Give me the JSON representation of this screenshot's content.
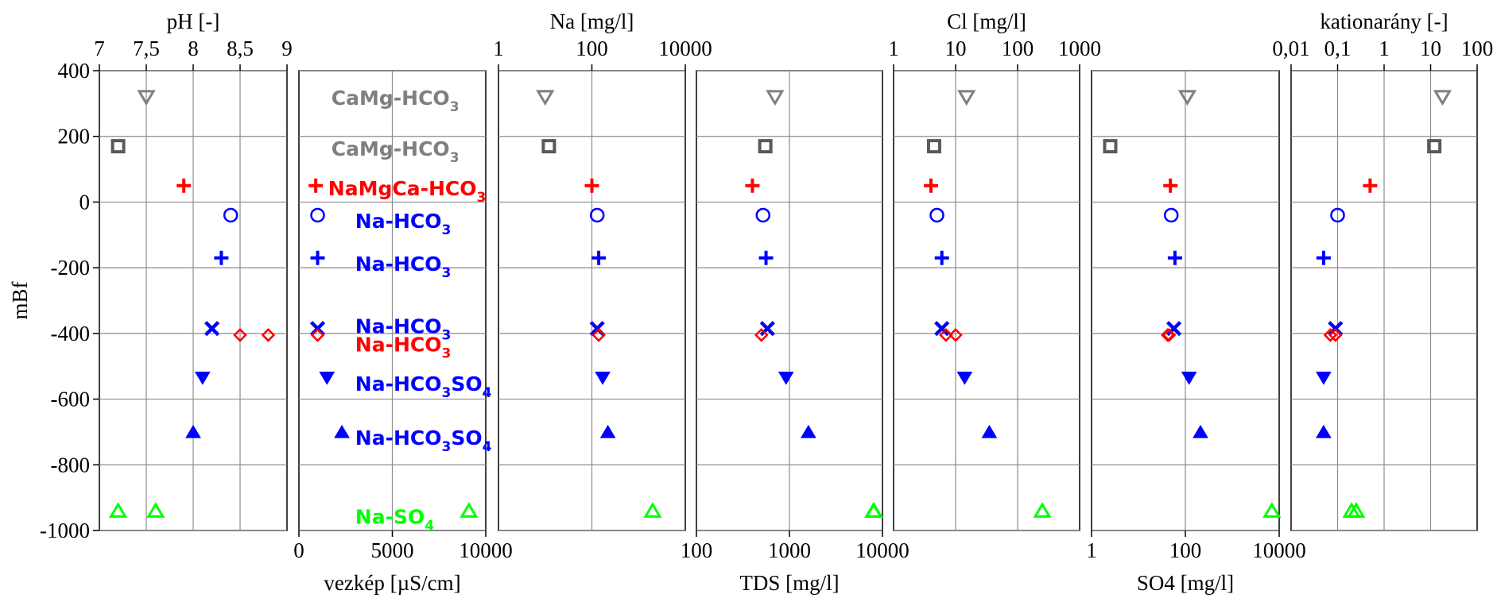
{
  "chart_data": {
    "type": "scatter",
    "y_axis": {
      "label": "mBf",
      "ylim": [
        -1000,
        400
      ],
      "ticks": [
        400,
        200,
        0,
        -200,
        -400,
        -600,
        -800,
        -1000
      ],
      "tick_labels": [
        "400",
        "200",
        "0",
        "-200",
        "-400",
        "-600",
        "-800",
        "-1000"
      ]
    },
    "panels": [
      {
        "id": "ph_ec",
        "top_axis": {
          "label": "pH [-]",
          "scale": "linear",
          "range": [
            7,
            9
          ],
          "ticks": [
            7,
            7.5,
            8,
            8.5,
            9
          ],
          "tick_labels": [
            "7",
            "7,5",
            "8",
            "8,5",
            "9"
          ]
        },
        "bottom_axis": {
          "label": "vezkép [µS/cm]",
          "scale": "linear",
          "range": [
            0,
            10000
          ],
          "ticks": [
            0,
            5000,
            10000
          ],
          "tick_labels": [
            "0",
            "5000",
            "10000"
          ]
        },
        "grid": true
      },
      {
        "id": "na_tds",
        "top_axis": {
          "label": "Na [mg/l]",
          "scale": "log",
          "range": [
            1,
            10000
          ],
          "ticks": [
            1,
            100,
            10000
          ],
          "tick_labels": [
            "1",
            "100",
            "10000"
          ]
        },
        "bottom_axis": {
          "label": "TDS [mg/l]",
          "scale": "log",
          "range": [
            100,
            10000
          ],
          "ticks": [
            100,
            1000,
            10000
          ],
          "tick_labels": [
            "100",
            "1000",
            "10000"
          ]
        },
        "grid": true
      },
      {
        "id": "cl_so4",
        "top_axis": {
          "label": "Cl [mg/l]",
          "scale": "log",
          "range": [
            1,
            1000
          ],
          "ticks": [
            1,
            10,
            100,
            1000
          ],
          "tick_labels": [
            "1",
            "10",
            "100",
            "1000"
          ]
        },
        "bottom_axis": {
          "label": "SO4 [mg/l]",
          "scale": "log",
          "range": [
            1,
            10000
          ],
          "ticks": [
            1,
            100,
            10000
          ],
          "tick_labels": [
            "1",
            "100",
            "10000"
          ]
        },
        "grid": true
      },
      {
        "id": "kation",
        "top_axis": {
          "label": "kationarány [-]",
          "scale": "log",
          "range": [
            0.01,
            100
          ],
          "ticks": [
            0.01,
            0.1,
            1,
            10,
            100
          ],
          "tick_labels": [
            "0,01",
            "0,1",
            "1",
            "10",
            "100"
          ]
        },
        "grid": true
      }
    ],
    "samples": [
      {
        "type": "CaMg-HCO3",
        "marker": "triangle-down-open",
        "color": "#7f7f7f",
        "depth": 320,
        "pH": 7.5,
        "ec": null,
        "Na": 10,
        "TDS": 700,
        "Cl": 15,
        "SO4": 110,
        "kation": 18
      },
      {
        "type": "CaMg-HCO3",
        "marker": "square-open",
        "color": "#5a5a5a",
        "depth": 170,
        "pH": 7.2,
        "ec": null,
        "Na": 12,
        "TDS": 550,
        "Cl": 4.5,
        "SO4": 2.5,
        "kation": 12
      },
      {
        "type": "NaMgCa-HCO3",
        "marker": "plus",
        "color": "#ff0000",
        "depth": 50,
        "pH": 7.9,
        "ec": null,
        "Na": 100,
        "TDS": 400,
        "Cl": 4,
        "SO4": 48,
        "kation": 0.5
      },
      {
        "type": "Na-HCO3",
        "marker": "circle-open",
        "color": "#0000ff",
        "depth": -40,
        "pH": 8.4,
        "ec": null,
        "Na": 130,
        "TDS": 520,
        "Cl": 5,
        "SO4": 50,
        "kation": 0.1
      },
      {
        "type": "Na-HCO3",
        "marker": "plus",
        "color": "#0000ff",
        "depth": -170,
        "pH": 8.3,
        "ec": null,
        "Na": 140,
        "TDS": 560,
        "Cl": 6,
        "SO4": 60,
        "kation": 0.05
      },
      {
        "type": "Na-HCO3",
        "marker": "x",
        "color": "#0000ff",
        "depth": -385,
        "pH": 8.2,
        "ec": null,
        "Na": 130,
        "TDS": 580,
        "Cl": 6,
        "SO4": 57,
        "kation": 0.09
      },
      {
        "type": "Na-HCO3",
        "marker": "diamond-open",
        "color": "#ff0000",
        "depth": -405,
        "pH": 8.5,
        "ec": null,
        "Na": 140,
        "TDS": 500,
        "Cl": 7,
        "SO4": 42,
        "kation": 0.07
      },
      {
        "type": "Na-HCO3",
        "marker": "diamond-open",
        "color": "#ff0000",
        "depth": -405,
        "pH": 8.8,
        "ec": null,
        "Na": null,
        "TDS": null,
        "Cl": 10,
        "SO4": 45,
        "kation": 0.09
      },
      {
        "type": "Na-HCO3SO4",
        "marker": "triangle-down-filled",
        "color": "#0000ff",
        "depth": -535,
        "pH": 8.1,
        "ec": null,
        "Na": 170,
        "TDS": 920,
        "Cl": 14,
        "SO4": 120,
        "kation": 0.05
      },
      {
        "type": "Na-HCO3SO4",
        "marker": "triangle-up-filled",
        "color": "#0000ff",
        "depth": -700,
        "pH": 8.0,
        "ec": null,
        "Na": 220,
        "TDS": 1600,
        "Cl": 35,
        "SO4": 210,
        "kation": 0.05
      },
      {
        "type": "Na-SO4",
        "marker": "triangle-up-open",
        "color": "#00ff00",
        "depth": -940,
        "pH": 7.2,
        "ec": null,
        "Na": 2000,
        "TDS": 8000,
        "Cl": 250,
        "SO4": 7000,
        "kation": 0.2
      },
      {
        "type": "Na-SO4",
        "marker": "triangle-up-open",
        "color": "#00ff00",
        "depth": -940,
        "pH": 7.6,
        "ec": null,
        "Na": null,
        "TDS": 8100,
        "Cl": null,
        "SO4": null,
        "kation": 0.25
      }
    ],
    "ec_markers": [
      {
        "ec": null,
        "depth": 320,
        "marker": "triangle-down-open",
        "color": "#7f7f7f"
      },
      {
        "ec": null,
        "depth": 170,
        "marker": "square-open",
        "color": "#5a5a5a"
      },
      {
        "ec": 900,
        "depth": 50,
        "marker": "plus",
        "color": "#ff0000"
      },
      {
        "ec": 1000,
        "depth": -40,
        "marker": "circle-open",
        "color": "#0000ff"
      },
      {
        "ec": 1000,
        "depth": -170,
        "marker": "plus",
        "color": "#0000ff"
      },
      {
        "ec": 1000,
        "depth": -385,
        "marker": "x",
        "color": "#0000ff"
      },
      {
        "ec": 1000,
        "depth": -405,
        "marker": "diamond-open",
        "color": "#ff0000"
      },
      {
        "ec": 1500,
        "depth": -535,
        "marker": "triangle-down-filled",
        "color": "#0000ff"
      },
      {
        "ec": 2300,
        "depth": -700,
        "marker": "triangle-up-filled",
        "color": "#0000ff"
      },
      {
        "ec": 9100,
        "depth": -940,
        "marker": "triangle-up-open",
        "color": "#00ff00"
      }
    ],
    "legend_labels": [
      {
        "text": "CaMg-HCO",
        "sub": "3",
        "depth": 320,
        "color": "#7f7f7f",
        "marker": "triangle-down-open"
      },
      {
        "text": "CaMg-HCO",
        "sub": "3",
        "depth": 165,
        "color": "#7f7f7f",
        "marker": "square-open"
      },
      {
        "text": "NaMgCa-HCO",
        "sub": "3",
        "depth": 45,
        "color": "#ff0000",
        "marker": "plus"
      },
      {
        "text": "Na-HCO",
        "sub": "3",
        "depth": -55,
        "color": "#0000ff",
        "marker": "circle-open"
      },
      {
        "text": "Na-HCO",
        "sub": "3",
        "depth": -185,
        "color": "#0000ff",
        "marker": "plus"
      },
      {
        "text": "Na-HCO",
        "sub": "3",
        "depth": -375,
        "color": "#0000ff",
        "marker": "x"
      },
      {
        "text": "Na-HCO",
        "sub": "3",
        "depth": -430,
        "color": "#ff0000",
        "marker": "diamond-open"
      },
      {
        "text": "Na-HCO",
        "sub": "3",
        "sub2": "SO",
        "sub3": "4",
        "depth": -550,
        "color": "#0000ff",
        "marker": "triangle-down-filled"
      },
      {
        "text": "Na-HCO",
        "sub": "3",
        "sub2": "SO",
        "sub3": "4",
        "depth": -715,
        "color": "#0000ff",
        "marker": "triangle-up-filled"
      },
      {
        "text": "Na-SO",
        "sub": "4",
        "depth": -955,
        "color": "#00ff00",
        "marker": "triangle-up-open"
      }
    ]
  }
}
